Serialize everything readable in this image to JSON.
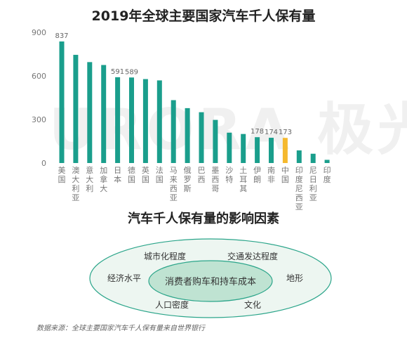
{
  "title": "2019年全球主要国家汽车千人保有量",
  "chart_data": {
    "type": "bar",
    "title": "2019年全球主要国家汽车千人保有量",
    "categories": [
      "美国",
      "澳大利亚",
      "意大利",
      "加拿大",
      "日本",
      "德国",
      "英国",
      "法国",
      "马来西亚",
      "俄罗斯",
      "巴西",
      "墨西哥",
      "沙特",
      "土耳其",
      "伊朗",
      "南非",
      "中国",
      "印度尼西亚",
      "尼日利亚",
      "印度"
    ],
    "values": [
      837,
      745,
      695,
      675,
      591,
      589,
      578,
      569,
      433,
      378,
      350,
      297,
      209,
      200,
      178,
      174,
      173,
      87,
      64,
      22
    ],
    "data_labels": {
      "美国": "837",
      "日本": "591",
      "德国": "589",
      "伊朗": "178",
      "南非": "174",
      "中国": "173"
    },
    "yticks": [
      "900",
      "600",
      "300",
      "0"
    ],
    "ylim": [
      0,
      900
    ],
    "xlabel": "",
    "ylabel": "",
    "legend": "none",
    "grid": false,
    "colors": {
      "bar": "#1a9e8c",
      "highlight": "#f5b92e",
      "highlight_category": "中国",
      "axis_text": "#777777",
      "label_text": "#666666"
    }
  },
  "diagram": {
    "title": "汽车千人保有量的影响因素",
    "center_label": "消费者购车和持车成本",
    "factors": [
      "城市化程度",
      "交通发达程度",
      "经济水平",
      "地形",
      "人口密度",
      "文化"
    ],
    "colors": {
      "outer_fill": "#edf6f1",
      "outer_stroke": "#2ba58a",
      "inner_fill": "#bfe3d2",
      "inner_stroke": "#2ba58a",
      "text": "#333333"
    }
  },
  "watermark": "URORA 极光",
  "source": "数据来源：全球主要国家汽车千人保有量来自世界银行"
}
